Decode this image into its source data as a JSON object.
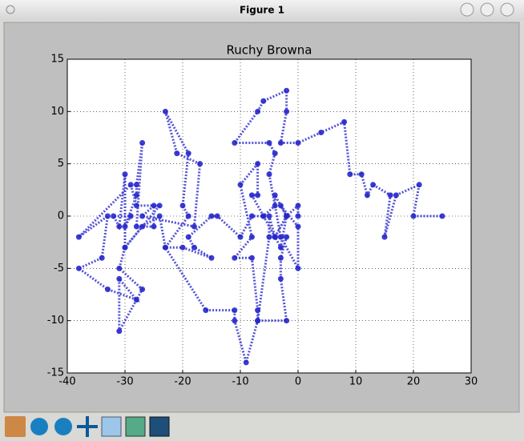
{
  "window": {
    "title": "Figure 1"
  },
  "chart_data": {
    "type": "line",
    "title": "Ruchy Browna",
    "x": [
      0,
      0,
      -2,
      -4,
      -2,
      -3,
      -3,
      -2,
      -7,
      -7,
      -8,
      -11,
      -8,
      -10,
      -7,
      -7,
      -8,
      -6,
      -8,
      -10,
      -14,
      -15,
      -19,
      -18,
      -15,
      -20,
      -23,
      -19,
      -20,
      -19,
      -23,
      -21,
      -17,
      -18,
      -27,
      -25,
      -25,
      -28,
      -27,
      -28,
      -28,
      -30,
      -29,
      -32,
      -31,
      -30,
      -30,
      -31,
      -27,
      -31,
      -31,
      -28,
      -33,
      -38,
      -34,
      -33,
      -38,
      -29,
      -28,
      -24,
      -30,
      -27,
      -24,
      -23,
      -16,
      -11,
      -11,
      -9,
      -7,
      -5,
      -5,
      -4,
      -6,
      -4,
      -4,
      -2,
      -4,
      -3,
      -2,
      -3,
      0,
      0,
      -3,
      -5,
      -4,
      -5,
      -11,
      -7,
      -6,
      -2,
      -2,
      -3,
      0,
      4,
      8,
      9,
      11,
      12,
      13,
      16,
      15,
      17,
      21,
      20,
      25
    ],
    "series": [
      {
        "color": "#2727cc",
        "values": [
          0,
          1,
          0,
          -2,
          -2,
          -4,
          -6,
          -10,
          -10,
          -9,
          -4,
          -4,
          -2,
          3,
          5,
          2,
          2,
          0,
          0,
          -2,
          0,
          0,
          -2,
          -3,
          -4,
          -3,
          -3,
          0,
          1,
          6,
          10,
          6,
          5,
          -1,
          0,
          1,
          -1,
          -1,
          7,
          3,
          2,
          -1,
          0,
          0,
          -1,
          4,
          -3,
          -5,
          -7,
          -11,
          -6,
          -8,
          -7,
          -5,
          -4,
          0,
          -2,
          3,
          1,
          1,
          -3,
          -1,
          0,
          -3,
          -9,
          -9,
          -10,
          -14,
          -10,
          -2,
          0,
          -2,
          0,
          1,
          2,
          0,
          -2,
          -3,
          0,
          1,
          -1,
          -5,
          -2,
          4,
          6,
          7,
          7,
          10,
          11,
          12,
          10,
          7,
          7,
          8,
          9,
          4,
          4,
          2,
          3,
          2,
          -2,
          2,
          3,
          0,
          0
        ]
      }
    ],
    "xlim": [
      -40,
      30
    ],
    "xticks": [
      -40,
      -30,
      -20,
      -10,
      0,
      10,
      20,
      30
    ],
    "ylim": [
      -15,
      15
    ],
    "yticks": [
      -15,
      -10,
      -5,
      0,
      5,
      10,
      15
    ],
    "grid": true
  }
}
